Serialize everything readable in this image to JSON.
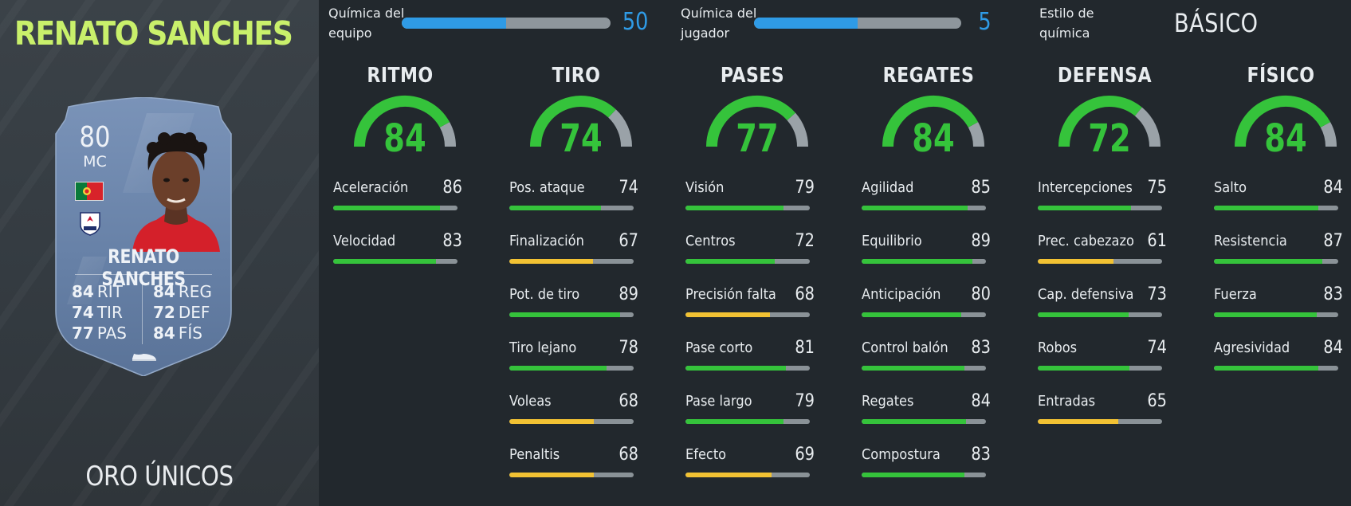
{
  "player": {
    "name": "RENATO SANCHES",
    "card_version": "ORO ÚNICOS"
  },
  "card": {
    "rating": "80",
    "position": "MC",
    "name": "RENATO SANCHES",
    "stats": [
      {
        "value": "84",
        "label": "RIT"
      },
      {
        "value": "74",
        "label": "TIR"
      },
      {
        "value": "77",
        "label": "PAS"
      },
      {
        "value": "84",
        "label": "REG"
      },
      {
        "value": "72",
        "label": "DEF"
      },
      {
        "value": "84",
        "label": "FÍS"
      }
    ]
  },
  "chemistry": {
    "team": {
      "label_line1": "Química del",
      "label_line2": "equipo",
      "value": "50",
      "fraction": 0.5
    },
    "player": {
      "label_line1": "Química del",
      "label_line2": "jugador",
      "value": "5",
      "fraction": 0.5
    },
    "style": {
      "label_line1": "Estilo de",
      "label_line2": "química",
      "value": "BÁSICO"
    }
  },
  "colors": {
    "green": "#35c33b",
    "yellow": "#f2c233",
    "blue": "#2f9be6",
    "name_accent": "#c9f06b"
  },
  "categories": [
    {
      "title": "RITMO",
      "value": "84",
      "stats": [
        {
          "label": "Aceleración",
          "value": "86"
        },
        {
          "label": "Velocidad",
          "value": "83"
        }
      ]
    },
    {
      "title": "TIRO",
      "value": "74",
      "stats": [
        {
          "label": "Pos. ataque",
          "value": "74"
        },
        {
          "label": "Finalización",
          "value": "67"
        },
        {
          "label": "Pot. de tiro",
          "value": "89"
        },
        {
          "label": "Tiro lejano",
          "value": "78"
        },
        {
          "label": "Voleas",
          "value": "68"
        },
        {
          "label": "Penaltis",
          "value": "68"
        }
      ]
    },
    {
      "title": "PASES",
      "value": "77",
      "stats": [
        {
          "label": "Visión",
          "value": "79"
        },
        {
          "label": "Centros",
          "value": "72"
        },
        {
          "label": "Precisión falta",
          "value": "68"
        },
        {
          "label": "Pase corto",
          "value": "81"
        },
        {
          "label": "Pase largo",
          "value": "79"
        },
        {
          "label": "Efecto",
          "value": "69"
        }
      ]
    },
    {
      "title": "REGATES",
      "value": "84",
      "stats": [
        {
          "label": "Agilidad",
          "value": "85"
        },
        {
          "label": "Equilibrio",
          "value": "89"
        },
        {
          "label": "Anticipación",
          "value": "80"
        },
        {
          "label": "Control balón",
          "value": "83"
        },
        {
          "label": "Regates",
          "value": "84"
        },
        {
          "label": "Compostura",
          "value": "83"
        }
      ]
    },
    {
      "title": "DEFENSA",
      "value": "72",
      "stats": [
        {
          "label": "Intercepciones",
          "value": "75"
        },
        {
          "label": "Prec. cabezazo",
          "value": "61"
        },
        {
          "label": "Cap. defensiva",
          "value": "73"
        },
        {
          "label": "Robos",
          "value": "74"
        },
        {
          "label": "Entradas",
          "value": "65"
        }
      ]
    },
    {
      "title": "FÍSICO",
      "value": "84",
      "stats": [
        {
          "label": "Salto",
          "value": "84"
        },
        {
          "label": "Resistencia",
          "value": "87"
        },
        {
          "label": "Fuerza",
          "value": "83"
        },
        {
          "label": "Agresividad",
          "value": "84"
        }
      ]
    }
  ]
}
